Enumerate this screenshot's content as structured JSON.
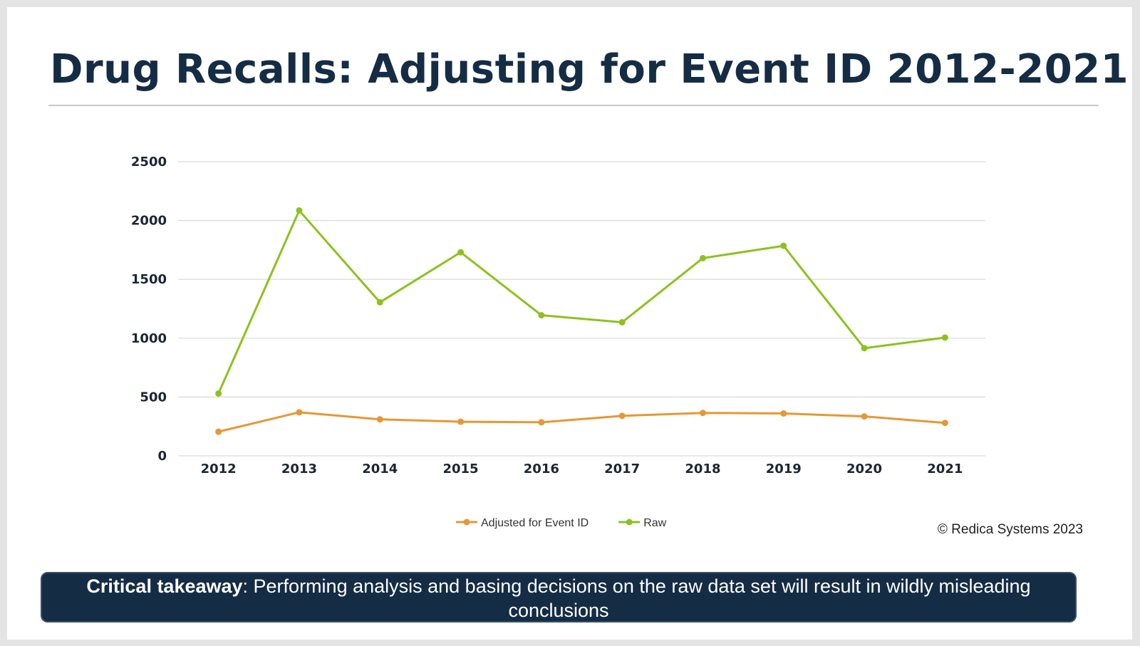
{
  "slide": {
    "title": "Drug Recalls: Adjusting for Event ID 2012-2021",
    "copyright": "© Redica Systems 2023",
    "takeaway_label": "Critical takeaway",
    "takeaway_text": ": Performing analysis and basing decisions on the raw data set will result in wildly misleading conclusions"
  },
  "chart_data": {
    "type": "line",
    "title": "",
    "xlabel": "",
    "ylabel": "",
    "categories": [
      "2012",
      "2013",
      "2014",
      "2015",
      "2016",
      "2017",
      "2018",
      "2019",
      "2020",
      "2021"
    ],
    "ylim": [
      0,
      2500
    ],
    "yticks": [
      0,
      500,
      1000,
      1500,
      2000,
      2500
    ],
    "grid": true,
    "legend_position": "bottom",
    "series": [
      {
        "name": "Adjusted for Event ID",
        "color": "#e69835",
        "values": [
          205,
          370,
          310,
          290,
          285,
          340,
          365,
          360,
          335,
          280
        ]
      },
      {
        "name": "Raw",
        "color": "#8cc21d",
        "values": [
          530,
          2085,
          1305,
          1730,
          1195,
          1135,
          1680,
          1785,
          915,
          1005
        ]
      }
    ]
  }
}
